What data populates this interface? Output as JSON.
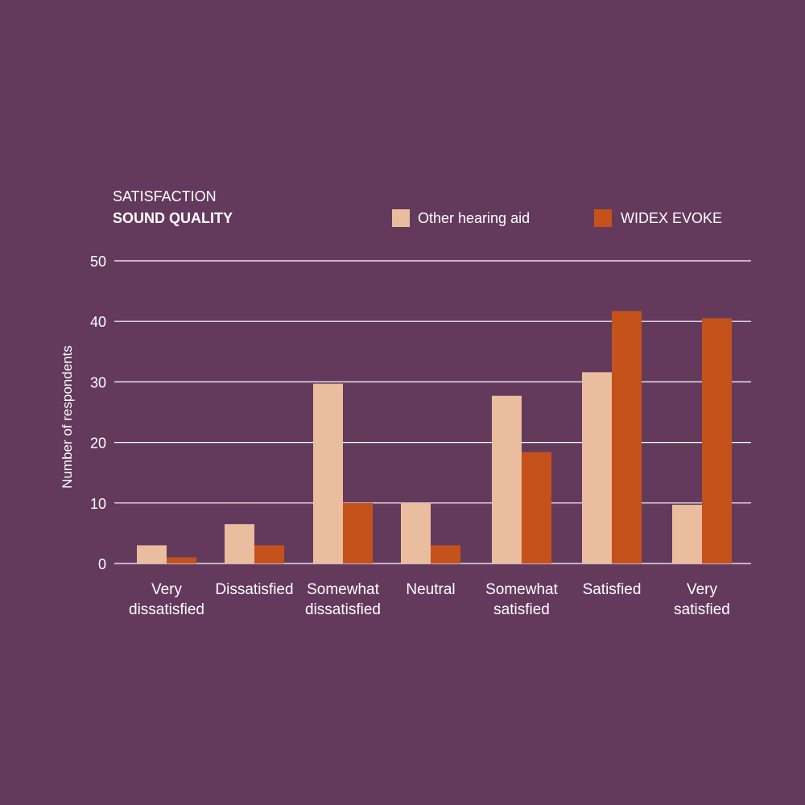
{
  "chart_data": {
    "type": "bar",
    "title": "SATISFACTION",
    "subtitle": "SOUND QUALITY",
    "xlabel": "",
    "ylabel": "Number of respondents",
    "ylim": [
      0,
      50
    ],
    "yticks": [
      0,
      10,
      20,
      30,
      40,
      50
    ],
    "grid": true,
    "legend_position": "top-right",
    "categories": [
      [
        "Very",
        "dissatisfied"
      ],
      [
        "Dissatisfied"
      ],
      [
        "Somewhat",
        "dissatisfied"
      ],
      [
        "Neutral"
      ],
      [
        "Somewhat",
        "satisfied"
      ],
      [
        "Satisfied"
      ],
      [
        "Very",
        "satisfied"
      ]
    ],
    "series": [
      {
        "name": "Other hearing aid",
        "color": "#eabd9e",
        "values": [
          3,
          6.5,
          29.7,
          10,
          27.7,
          31.6,
          9.7
        ]
      },
      {
        "name": "WIDEX EVOKE",
        "color": "#c5521b",
        "values": [
          1,
          3,
          10,
          3,
          18.4,
          41.7,
          40.5
        ]
      }
    ]
  },
  "colors": {
    "background": "#643a5c",
    "gridline": "#ffffff",
    "text": "#ffffff"
  }
}
